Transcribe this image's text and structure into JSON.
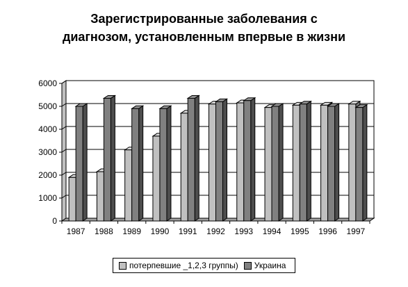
{
  "chart_data": {
    "type": "bar",
    "title": "Зарегистрированные заболевания с диагнозом, установленным впервые в жизни",
    "title_lines": [
      "Зарегистрированные заболевания с",
      "диагнозом, установленным впервые в жизни"
    ],
    "xlabel": "",
    "ylabel": "",
    "ylim": [
      0,
      6000
    ],
    "yticks": [
      "0",
      "1000",
      "2000",
      "3000",
      "4000",
      "5000",
      "6000"
    ],
    "categories": [
      "1987",
      "1988",
      "1989",
      "1990",
      "1991",
      "1992",
      "1993",
      "1994",
      "1995",
      "1996",
      "1997"
    ],
    "series": [
      {
        "name": "потерпевшие _1,2,3 группы)",
        "color": "#c0c0c0",
        "values": [
          1900,
          2150,
          3100,
          3700,
          4700,
          5100,
          5150,
          4950,
          5050,
          5050,
          5100
        ]
      },
      {
        "name": "Украина",
        "color": "#808080",
        "values": [
          5000,
          5350,
          4900,
          4900,
          5350,
          5200,
          5250,
          5000,
          5100,
          5000,
          4950
        ]
      }
    ],
    "grid": true,
    "legend_position": "bottom",
    "style": "3d-clustered"
  }
}
